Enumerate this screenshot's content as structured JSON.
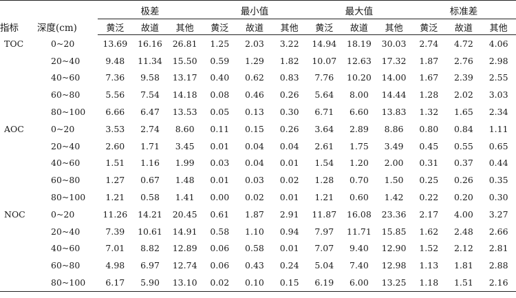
{
  "header": {
    "indicator": "指标",
    "depth": "深度(cm)",
    "groups": [
      "极差",
      "最小值",
      "最大值",
      "标准差"
    ],
    "subs": [
      "黄泛",
      "故道",
      "其他"
    ]
  },
  "rows": [
    {
      "indicator": "TOC",
      "depth": "0~20",
      "v": [
        "13.69",
        "16.16",
        "26.81",
        "1.25",
        "2.03",
        "3.22",
        "14.94",
        "18.19",
        "30.03",
        "2.74",
        "4.72",
        "4.06"
      ]
    },
    {
      "indicator": "",
      "depth": "20~40",
      "v": [
        "9.48",
        "11.34",
        "15.50",
        "0.59",
        "1.29",
        "1.82",
        "10.07",
        "12.63",
        "17.32",
        "1.87",
        "2.76",
        "2.98"
      ]
    },
    {
      "indicator": "",
      "depth": "40~60",
      "v": [
        "7.36",
        "9.58",
        "13.17",
        "0.40",
        "0.62",
        "0.83",
        "7.76",
        "10.20",
        "14.00",
        "1.67",
        "2.39",
        "2.55"
      ]
    },
    {
      "indicator": "",
      "depth": "60~80",
      "v": [
        "5.56",
        "7.54",
        "14.18",
        "0.08",
        "0.46",
        "0.26",
        "5.64",
        "8.00",
        "14.44",
        "1.28",
        "2.02",
        "3.03"
      ]
    },
    {
      "indicator": "",
      "depth": "80~100",
      "v": [
        "6.66",
        "6.47",
        "13.53",
        "0.05",
        "0.13",
        "0.30",
        "6.71",
        "6.60",
        "13.83",
        "1.32",
        "1.65",
        "2.34"
      ]
    },
    {
      "indicator": "AOC",
      "depth": "0~20",
      "v": [
        "3.53",
        "2.74",
        "8.60",
        "0.11",
        "0.15",
        "0.26",
        "3.64",
        "2.89",
        "8.86",
        "0.80",
        "0.84",
        "1.11"
      ]
    },
    {
      "indicator": "",
      "depth": "20~40",
      "v": [
        "2.60",
        "1.71",
        "3.45",
        "0.01",
        "0.04",
        "0.04",
        "2.61",
        "1.75",
        "3.49",
        "0.45",
        "0.55",
        "0.65"
      ]
    },
    {
      "indicator": "",
      "depth": "40~60",
      "v": [
        "1.51",
        "1.16",
        "1.99",
        "0.03",
        "0.04",
        "0.01",
        "1.54",
        "1.20",
        "2.00",
        "0.31",
        "0.37",
        "0.44"
      ]
    },
    {
      "indicator": "",
      "depth": "60~80",
      "v": [
        "1.27",
        "0.67",
        "1.48",
        "0.01",
        "0.03",
        "0.02",
        "1.28",
        "0.70",
        "1.50",
        "0.25",
        "0.26",
        "0.35"
      ]
    },
    {
      "indicator": "",
      "depth": "80~100",
      "v": [
        "1.21",
        "0.58",
        "1.41",
        "0.00",
        "0.02",
        "0.01",
        "1.21",
        "0.60",
        "1.42",
        "0.22",
        "0.20",
        "0.30"
      ]
    },
    {
      "indicator": "NOC",
      "depth": "0~20",
      "v": [
        "11.26",
        "14.21",
        "20.45",
        "0.61",
        "1.87",
        "2.91",
        "11.87",
        "16.08",
        "23.36",
        "2.17",
        "4.00",
        "3.27"
      ]
    },
    {
      "indicator": "",
      "depth": "20~40",
      "v": [
        "7.39",
        "10.61",
        "14.91",
        "0.58",
        "1.10",
        "0.94",
        "7.97",
        "11.71",
        "15.85",
        "1.62",
        "2.48",
        "2.66"
      ]
    },
    {
      "indicator": "",
      "depth": "40~60",
      "v": [
        "7.01",
        "8.82",
        "12.89",
        "0.06",
        "0.58",
        "0.01",
        "7.07",
        "9.40",
        "12.90",
        "1.52",
        "2.12",
        "2.81"
      ]
    },
    {
      "indicator": "",
      "depth": "60~80",
      "v": [
        "4.98",
        "6.97",
        "12.74",
        "0.06",
        "0.43",
        "0.24",
        "5.04",
        "7.40",
        "12.98",
        "1.13",
        "1.81",
        "2.88"
      ]
    },
    {
      "indicator": "",
      "depth": "80~100",
      "v": [
        "6.17",
        "5.90",
        "13.10",
        "0.02",
        "0.10",
        "0.15",
        "6.19",
        "6.00",
        "13.25",
        "1.18",
        "1.51",
        "2.16"
      ]
    }
  ]
}
